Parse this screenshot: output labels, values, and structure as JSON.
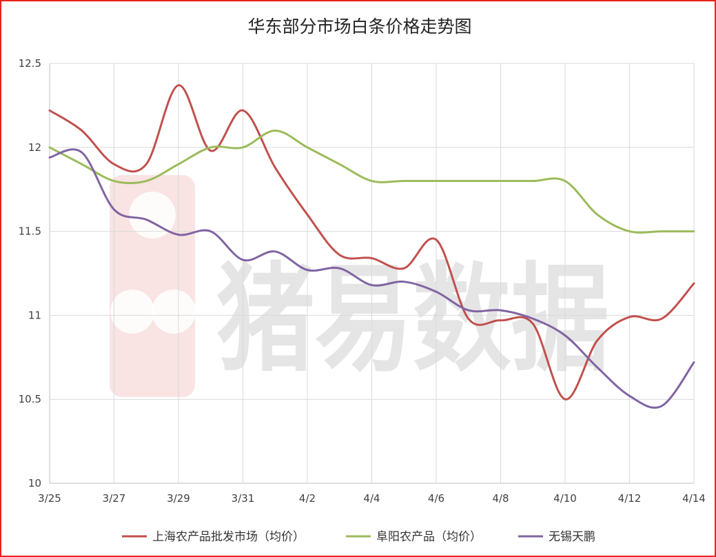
{
  "chart_data": {
    "type": "line",
    "title": "华东部分市场白条价格走势图",
    "watermark": "猪易数据",
    "x": [
      "3/25",
      "3/26",
      "3/27",
      "3/28",
      "3/29",
      "3/30",
      "3/31",
      "4/1",
      "4/2",
      "4/3",
      "4/4",
      "4/5",
      "4/6",
      "4/7",
      "4/8",
      "4/9",
      "4/10",
      "4/11",
      "4/12",
      "4/13",
      "4/14"
    ],
    "x_tick_labels": [
      "3/25",
      "3/27",
      "3/29",
      "3/31",
      "4/2",
      "4/4",
      "4/6",
      "4/8",
      "4/10",
      "4/12",
      "4/14"
    ],
    "y_tick_labels": [
      "10",
      "10.5",
      "11",
      "11.5",
      "12",
      "12.5"
    ],
    "ylim": [
      10,
      12.5
    ],
    "grid": true,
    "legend_position": "bottom",
    "series": [
      {
        "name": "上海农产品批发市场（均价）",
        "color": "#c0504d",
        "values": [
          12.22,
          12.1,
          11.9,
          11.9,
          12.37,
          11.98,
          12.22,
          11.88,
          11.6,
          11.36,
          11.34,
          11.28,
          11.45,
          10.98,
          10.97,
          10.95,
          10.5,
          10.85,
          10.99,
          10.98,
          11.19
        ]
      },
      {
        "name": "阜阳农产品（均价）",
        "color": "#9bbb59",
        "values": [
          12.0,
          11.9,
          11.8,
          11.8,
          11.9,
          12.0,
          12.0,
          12.1,
          12.0,
          11.9,
          11.8,
          11.8,
          11.8,
          11.8,
          11.8,
          11.8,
          11.8,
          11.6,
          11.5,
          11.5,
          11.5
        ]
      },
      {
        "name": "无锡天鹏",
        "color": "#8064a2",
        "values": [
          11.94,
          11.97,
          11.63,
          11.57,
          11.48,
          11.5,
          11.33,
          11.38,
          11.27,
          11.28,
          11.18,
          11.2,
          11.14,
          11.03,
          11.03,
          10.98,
          10.88,
          10.69,
          10.52,
          10.46,
          10.72
        ]
      }
    ]
  }
}
